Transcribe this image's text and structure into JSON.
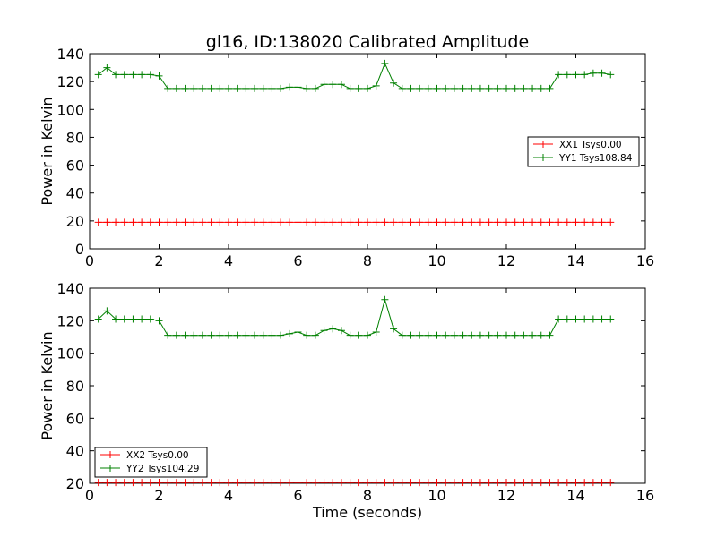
{
  "figure_title": "gl16, ID:138020 Calibrated Amplitude",
  "colors": {
    "xx": "#ff0000",
    "yy": "#008000",
    "axes": "#000000"
  },
  "chart_data": [
    {
      "type": "line",
      "title": "gl16, ID:138020 Calibrated Amplitude",
      "xlabel": "",
      "ylabel": "Power in Kelvin",
      "xlim": [
        0,
        16
      ],
      "ylim": [
        0,
        140
      ],
      "xticks": [
        0,
        2,
        4,
        6,
        8,
        10,
        12,
        14,
        16
      ],
      "yticks": [
        0,
        20,
        40,
        60,
        80,
        100,
        120,
        140
      ],
      "legend_position": "center-right",
      "x": [
        0.25,
        0.5,
        0.75,
        1.0,
        1.25,
        1.5,
        1.75,
        2.0,
        2.25,
        2.5,
        2.75,
        3.0,
        3.25,
        3.5,
        3.75,
        4.0,
        4.25,
        4.5,
        4.75,
        5.0,
        5.25,
        5.5,
        5.75,
        6.0,
        6.25,
        6.5,
        6.75,
        7.0,
        7.25,
        7.5,
        7.75,
        8.0,
        8.25,
        8.5,
        8.75,
        9.0,
        9.25,
        9.5,
        9.75,
        10.0,
        10.25,
        10.5,
        10.75,
        11.0,
        11.25,
        11.5,
        11.75,
        12.0,
        12.25,
        12.5,
        12.75,
        13.0,
        13.25,
        13.5,
        13.75,
        14.0,
        14.25,
        14.5,
        14.75,
        15.0
      ],
      "series": [
        {
          "name": "XX1 Tsys0.00",
          "color": "#ff0000",
          "values": [
            19,
            19,
            19,
            19,
            19,
            19,
            19,
            19,
            19,
            19,
            19,
            19,
            19,
            19,
            19,
            19,
            19,
            19,
            19,
            19,
            19,
            19,
            19,
            19,
            19,
            19,
            19,
            19,
            19,
            19,
            19,
            19,
            19,
            19,
            19,
            19,
            19,
            19,
            19,
            19,
            19,
            19,
            19,
            19,
            19,
            19,
            19,
            19,
            19,
            19,
            19,
            19,
            19,
            19,
            19,
            19,
            19,
            19,
            19,
            19
          ]
        },
        {
          "name": "YY1 Tsys108.84",
          "color": "#008000",
          "values": [
            125,
            130,
            125,
            125,
            125,
            125,
            125,
            124,
            115,
            115,
            115,
            115,
            115,
            115,
            115,
            115,
            115,
            115,
            115,
            115,
            115,
            115,
            116,
            116,
            115,
            115,
            118,
            118,
            118,
            115,
            115,
            115,
            117,
            133,
            119,
            115,
            115,
            115,
            115,
            115,
            115,
            115,
            115,
            115,
            115,
            115,
            115,
            115,
            115,
            115,
            115,
            115,
            115,
            125,
            125,
            125,
            125,
            126,
            126,
            125
          ]
        }
      ]
    },
    {
      "type": "line",
      "title": "",
      "xlabel": "Time (seconds)",
      "ylabel": "Power in Kelvin",
      "xlim": [
        0,
        16
      ],
      "ylim": [
        20,
        140
      ],
      "xticks": [
        0,
        2,
        4,
        6,
        8,
        10,
        12,
        14,
        16
      ],
      "yticks": [
        20,
        40,
        60,
        80,
        100,
        120,
        140
      ],
      "legend_position": "lower-left",
      "x": [
        0.25,
        0.5,
        0.75,
        1.0,
        1.25,
        1.5,
        1.75,
        2.0,
        2.25,
        2.5,
        2.75,
        3.0,
        3.25,
        3.5,
        3.75,
        4.0,
        4.25,
        4.5,
        4.75,
        5.0,
        5.25,
        5.5,
        5.75,
        6.0,
        6.25,
        6.5,
        6.75,
        7.0,
        7.25,
        7.5,
        7.75,
        8.0,
        8.25,
        8.5,
        8.75,
        9.0,
        9.25,
        9.5,
        9.75,
        10.0,
        10.25,
        10.5,
        10.75,
        11.0,
        11.25,
        11.5,
        11.75,
        12.0,
        12.25,
        12.5,
        12.75,
        13.0,
        13.25,
        13.5,
        13.75,
        14.0,
        14.25,
        14.5,
        14.75,
        15.0
      ],
      "series": [
        {
          "name": "XX2 Tsys0.00",
          "color": "#ff0000",
          "values": [
            20.5,
            20.5,
            20.5,
            20.5,
            20.5,
            20.5,
            20.5,
            20.5,
            20.5,
            20.5,
            20.5,
            20.5,
            20.5,
            20.5,
            20.5,
            20.5,
            20.5,
            20.5,
            20.5,
            20.5,
            20.5,
            20.5,
            20.5,
            20.5,
            20.5,
            20.5,
            20.5,
            20.5,
            20.5,
            20.5,
            20.5,
            20.5,
            20.5,
            20.5,
            20.5,
            20.5,
            20.5,
            20.5,
            20.5,
            20.5,
            20.5,
            20.5,
            20.5,
            20.5,
            20.5,
            20.5,
            20.5,
            20.5,
            20.5,
            20.5,
            20.5,
            20.5,
            20.5,
            20.5,
            20.5,
            20.5,
            20.5,
            20.5,
            20.5,
            20.5
          ]
        },
        {
          "name": "YY2 Tsys104.29",
          "color": "#008000",
          "values": [
            121,
            126,
            121,
            121,
            121,
            121,
            121,
            120,
            111,
            111,
            111,
            111,
            111,
            111,
            111,
            111,
            111,
            111,
            111,
            111,
            111,
            111,
            112,
            113,
            111,
            111,
            114,
            115,
            114,
            111,
            111,
            111,
            113,
            133,
            115,
            111,
            111,
            111,
            111,
            111,
            111,
            111,
            111,
            111,
            111,
            111,
            111,
            111,
            111,
            111,
            111,
            111,
            111,
            121,
            121,
            121,
            121,
            121,
            121,
            121
          ]
        }
      ]
    }
  ]
}
